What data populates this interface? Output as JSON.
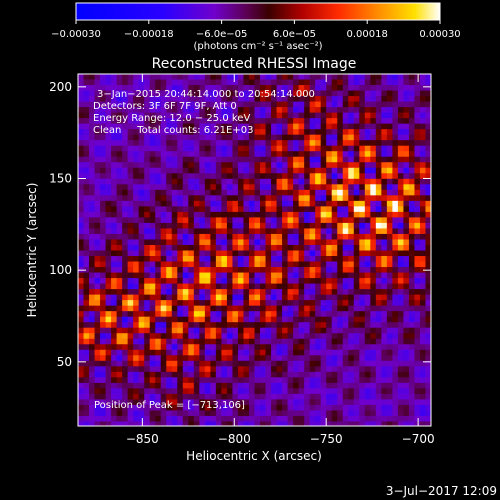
{
  "chart_data": {
    "type": "heatmap",
    "title": "Reconstructed RHESSI Image",
    "xlabel": "Heliocentric X (arcsec)",
    "ylabel": "Heliocentric Y (arcsec)",
    "xlim": [
      -885,
      -693
    ],
    "ylim": [
      15,
      207
    ],
    "x_ticks": [
      -850,
      -800,
      -750,
      -700
    ],
    "x_tick_labels": [
      "−850",
      "−800",
      "−750",
      "−700"
    ],
    "y_ticks": [
      50,
      100,
      150,
      200
    ],
    "y_tick_labels": [
      "50",
      "100",
      "150",
      "200"
    ],
    "colorbar": {
      "range": [
        -0.0003,
        0.0003
      ],
      "ticks": [
        -0.0003,
        -0.00018,
        -6e-05,
        6e-05,
        0.00018,
        0.0003
      ],
      "tick_labels": [
        "−0.00030",
        "−0.00018",
        "−6.0e−05",
        "6.0e−05",
        "0.00018",
        "0.00030"
      ],
      "label": "(photons cm⁻² s⁻¹ asec⁻²)"
    },
    "annotations": [
      "3−Jan−2015 20:44:14.000 to 20:54:14.000",
      "Detectors: 3F 6F 7F 9F, Att 0",
      "Energy Range: 12.0 − 25.0 keV",
      "Clean     Total counts: 6.21E+03"
    ],
    "peak_text": "Position of Peak = [−713,106]",
    "grid": false
  },
  "footer": {
    "timestamp": "3−Jul−2017 12:09"
  }
}
